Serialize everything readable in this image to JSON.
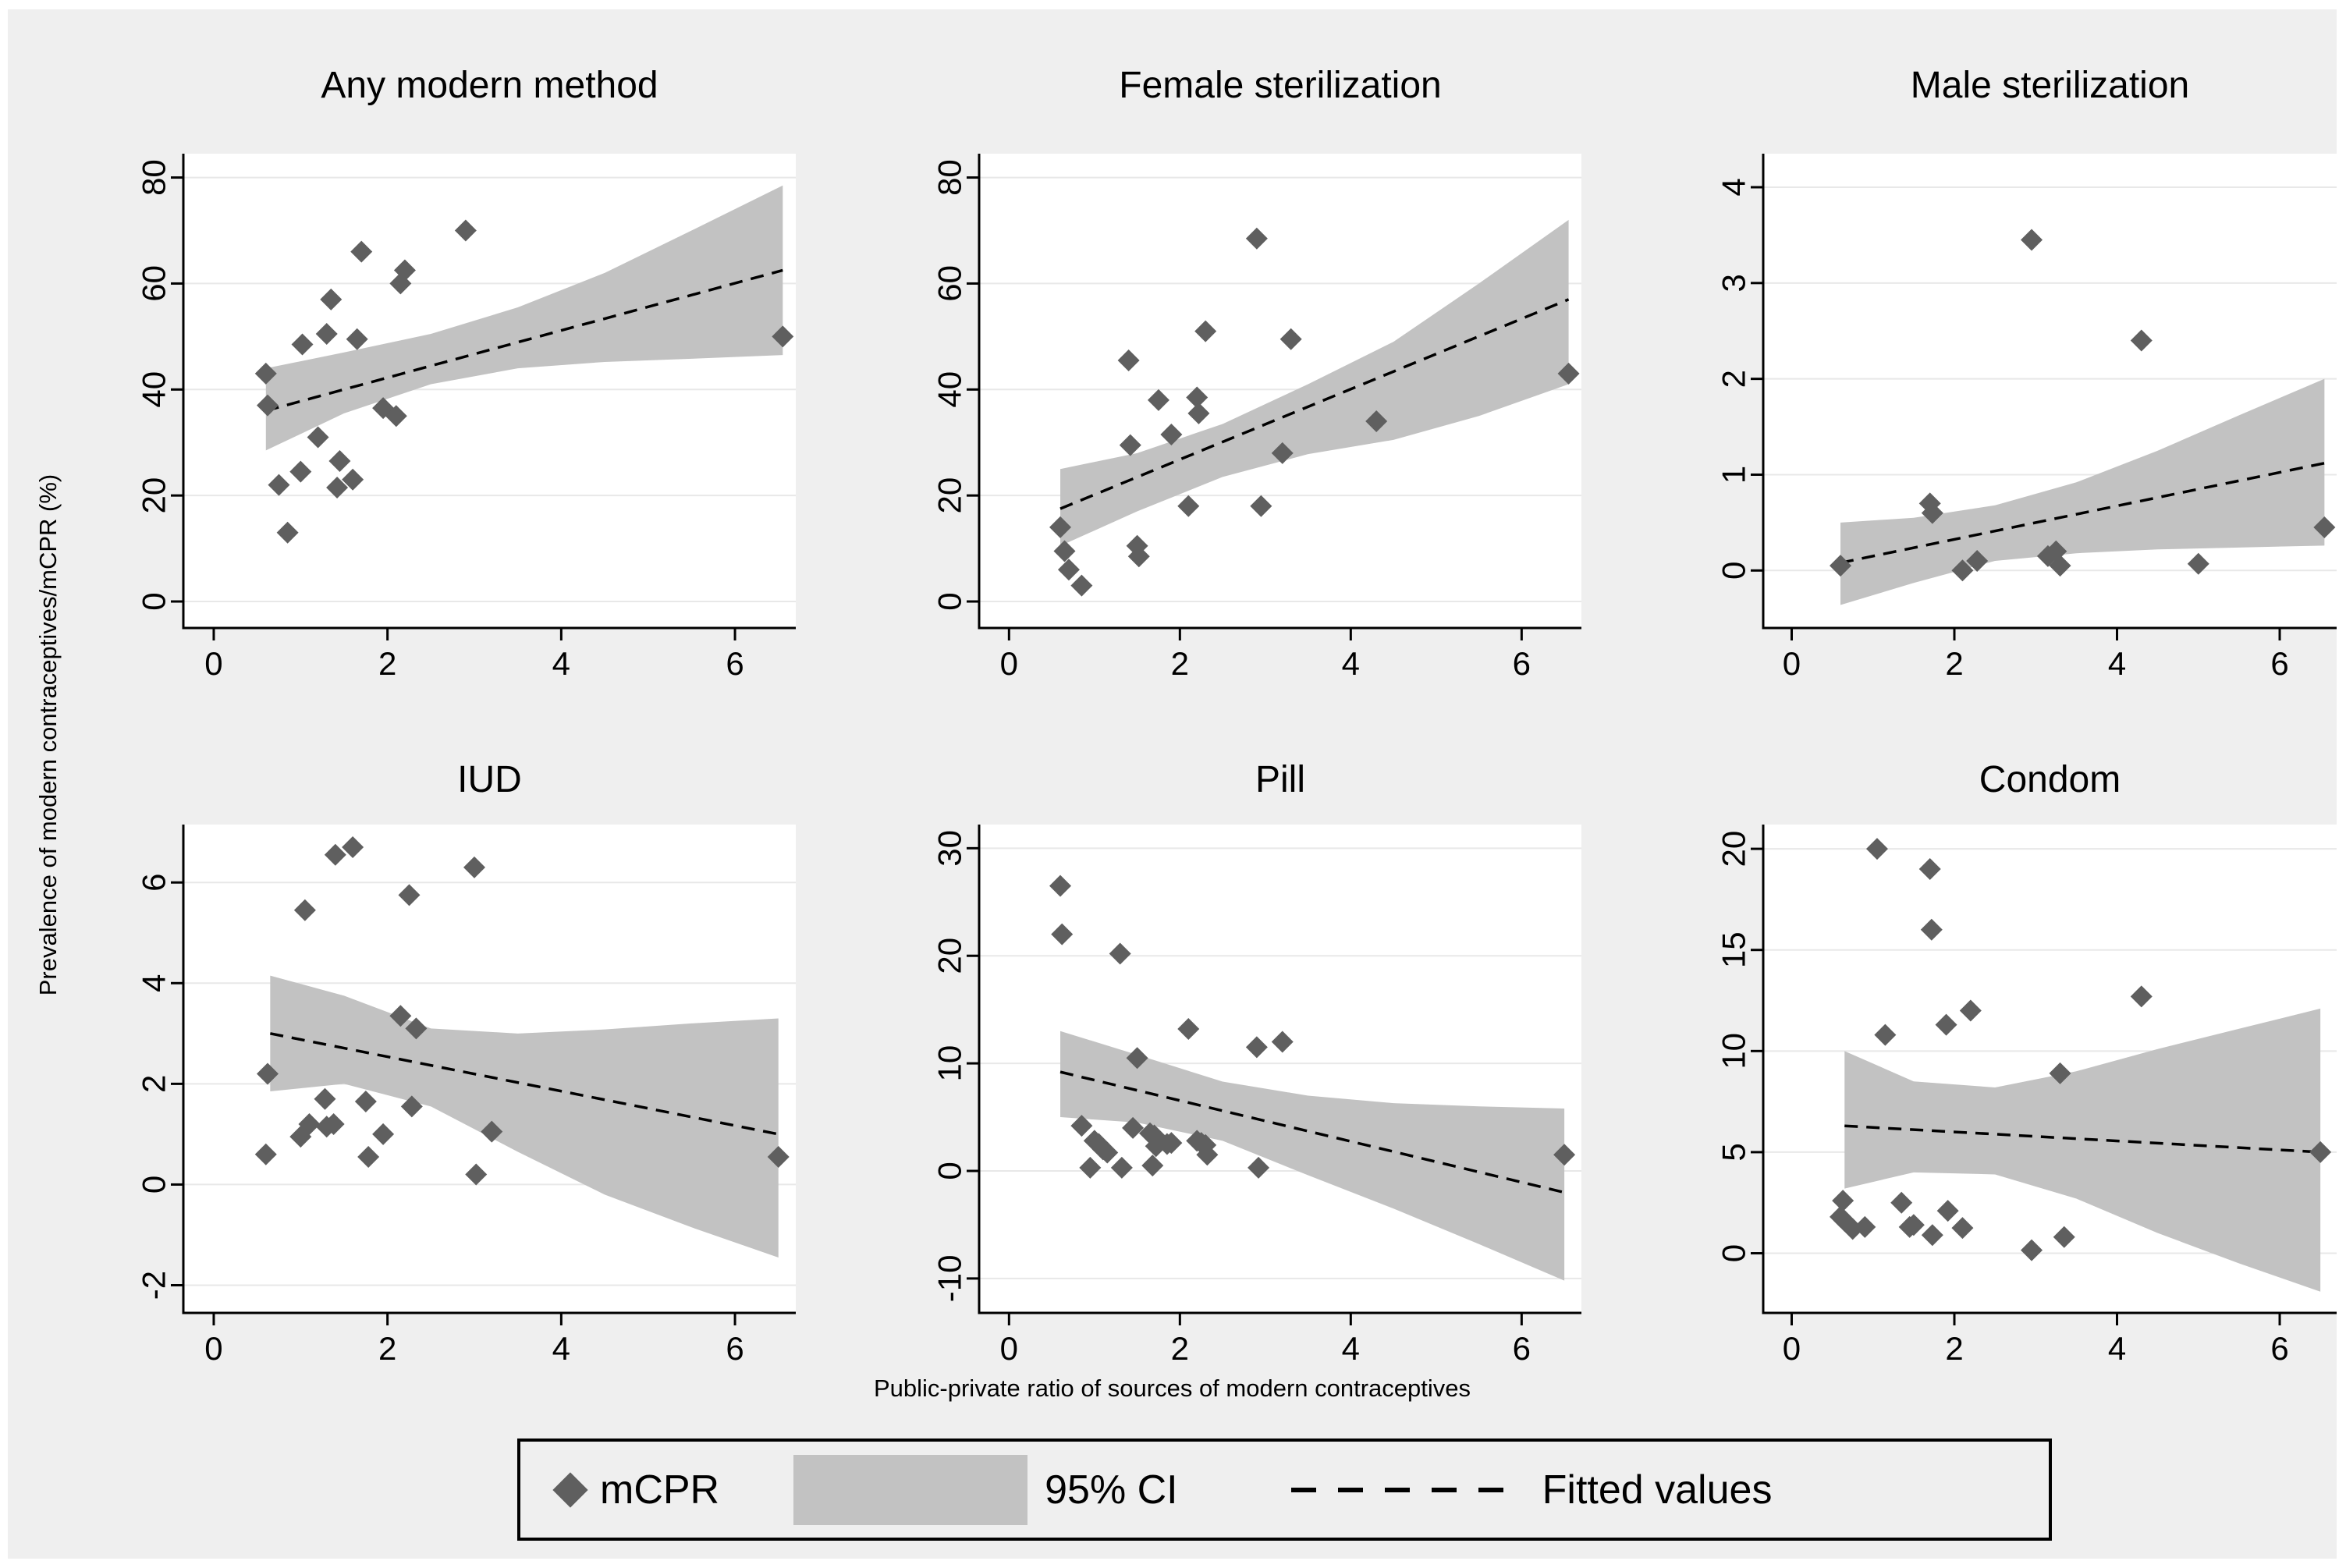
{
  "figure": {
    "ylabel": "Prevalence of modern contraceptives/mCPR (%)",
    "xlabel": "Public-private ratio of sources of modern contraceptives",
    "legend": {
      "mcpr_label": "mCPR",
      "ci_label": "95% CI",
      "fitted_label": "Fitted values"
    },
    "colors": {
      "background": "#efefef",
      "plot_bg": "#ffffff",
      "marker": "#5f5f5f",
      "ci_band": "#c2c2c2",
      "fitted_line": "#000000",
      "grid": "#e8e8e8",
      "axis": "#000000"
    }
  },
  "chart_data": [
    {
      "type": "scatter",
      "title": "Any modern method",
      "xlim": [
        -0.35,
        6.7
      ],
      "ylim": [
        -5,
        84.5
      ],
      "xticks": [
        0,
        2,
        4,
        6
      ],
      "yticks": [
        0,
        20,
        40,
        60,
        80
      ],
      "grid": "horizontal",
      "legend_position": "bottom",
      "points": [
        [
          0.6,
          43
        ],
        [
          0.62,
          37
        ],
        [
          0.75,
          22
        ],
        [
          0.85,
          13
        ],
        [
          1.0,
          24.5
        ],
        [
          1.02,
          48.5
        ],
        [
          1.2,
          31
        ],
        [
          1.3,
          50.5
        ],
        [
          1.35,
          57
        ],
        [
          1.42,
          21.5
        ],
        [
          1.45,
          26.5
        ],
        [
          1.6,
          23
        ],
        [
          1.65,
          49.5
        ],
        [
          1.7,
          66
        ],
        [
          1.95,
          36.5
        ],
        [
          2.1,
          35
        ],
        [
          2.15,
          60
        ],
        [
          2.2,
          62.5
        ],
        [
          2.9,
          70
        ],
        [
          6.55,
          50
        ]
      ],
      "fit": {
        "x": [
          0.6,
          6.55
        ],
        "y": [
          36,
          62.5
        ]
      },
      "ci": {
        "x": [
          0.6,
          1.5,
          2.5,
          3.5,
          4.5,
          5.5,
          6.55
        ],
        "upper": [
          44,
          47,
          50.5,
          55.5,
          62,
          70,
          78.5
        ],
        "lower": [
          28.5,
          35.5,
          41,
          44,
          45.2,
          45.8,
          46.5
        ]
      }
    },
    {
      "type": "scatter",
      "title": "Female sterilization",
      "xlim": [
        -0.35,
        6.7
      ],
      "ylim": [
        -5,
        84.5
      ],
      "xticks": [
        0,
        2,
        4,
        6
      ],
      "yticks": [
        0,
        20,
        40,
        60,
        80
      ],
      "grid": "horizontal",
      "points": [
        [
          0.6,
          14
        ],
        [
          0.65,
          9.5
        ],
        [
          0.7,
          6
        ],
        [
          0.85,
          3
        ],
        [
          1.4,
          45.5
        ],
        [
          1.42,
          29.5
        ],
        [
          1.5,
          10.5
        ],
        [
          1.52,
          8.5
        ],
        [
          1.75,
          38
        ],
        [
          1.9,
          31.5
        ],
        [
          2.1,
          18
        ],
        [
          2.2,
          38.5
        ],
        [
          2.22,
          35.5
        ],
        [
          2.3,
          51
        ],
        [
          2.9,
          68.5
        ],
        [
          2.95,
          18
        ],
        [
          3.2,
          28
        ],
        [
          3.3,
          49.5
        ],
        [
          4.3,
          34
        ],
        [
          6.55,
          43
        ]
      ],
      "fit": {
        "x": [
          0.6,
          6.55
        ],
        "y": [
          17.5,
          57
        ]
      },
      "ci": {
        "x": [
          0.6,
          1.5,
          2.5,
          3.5,
          4.5,
          5.5,
          6.55
        ],
        "upper": [
          25,
          28,
          33.5,
          41,
          49,
          60,
          72
        ],
        "lower": [
          10.5,
          17,
          23.5,
          27.8,
          30.5,
          35,
          41
        ]
      }
    },
    {
      "type": "scatter",
      "title": "Male sterilization",
      "xlim": [
        -0.35,
        6.7
      ],
      "ylim": [
        -0.6,
        4.35
      ],
      "xticks": [
        0,
        2,
        4,
        6
      ],
      "yticks": [
        0,
        1,
        2,
        3,
        4
      ],
      "grid": "horizontal",
      "points": [
        [
          0.6,
          0.05
        ],
        [
          1.7,
          0.7
        ],
        [
          1.73,
          0.6
        ],
        [
          2.1,
          0.0
        ],
        [
          2.28,
          0.1
        ],
        [
          2.95,
          3.45
        ],
        [
          3.15,
          0.15
        ],
        [
          3.25,
          0.2
        ],
        [
          3.3,
          0.05
        ],
        [
          4.3,
          2.4
        ],
        [
          5.0,
          0.07
        ],
        [
          6.55,
          0.45
        ]
      ],
      "fit": {
        "x": [
          0.6,
          6.55
        ],
        "y": [
          0.08,
          1.12
        ]
      },
      "ci": {
        "x": [
          0.6,
          1.5,
          2.5,
          3.5,
          4.5,
          5.5,
          6.55
        ],
        "upper": [
          0.5,
          0.55,
          0.68,
          0.92,
          1.25,
          1.62,
          2.0
        ],
        "lower": [
          -0.36,
          -0.13,
          0.1,
          0.18,
          0.22,
          0.24,
          0.26
        ]
      }
    },
    {
      "type": "scatter",
      "title": "IUD",
      "xlim": [
        -0.35,
        6.7
      ],
      "ylim": [
        -2.55,
        7.15
      ],
      "xticks": [
        0,
        2,
        4,
        6
      ],
      "yticks": [
        -2,
        0,
        2,
        4,
        6
      ],
      "grid": "horizontal",
      "points": [
        [
          0.6,
          0.6
        ],
        [
          0.62,
          2.2
        ],
        [
          1.0,
          0.95
        ],
        [
          1.05,
          5.45
        ],
        [
          1.1,
          1.2
        ],
        [
          1.28,
          1.7
        ],
        [
          1.3,
          1.15
        ],
        [
          1.38,
          1.2
        ],
        [
          1.4,
          6.55
        ],
        [
          1.6,
          6.7
        ],
        [
          1.75,
          1.65
        ],
        [
          1.78,
          0.55
        ],
        [
          1.95,
          1.0
        ],
        [
          2.15,
          3.35
        ],
        [
          2.25,
          5.75
        ],
        [
          2.33,
          3.1
        ],
        [
          2.28,
          1.55
        ],
        [
          3.0,
          6.3
        ],
        [
          3.02,
          0.2
        ],
        [
          3.2,
          1.05
        ],
        [
          6.5,
          0.55
        ]
      ],
      "fit": {
        "x": [
          0.65,
          6.5
        ],
        "y": [
          3.0,
          1.0
        ]
      },
      "ci": {
        "x": [
          0.65,
          1.5,
          2.5,
          3.5,
          4.5,
          5.5,
          6.5
        ],
        "upper": [
          4.15,
          3.75,
          3.1,
          3.0,
          3.08,
          3.2,
          3.3
        ],
        "lower": [
          1.85,
          2.0,
          1.55,
          0.65,
          -0.2,
          -0.85,
          -1.45
        ]
      }
    },
    {
      "type": "scatter",
      "title": "Pill",
      "xlim": [
        -0.35,
        6.7
      ],
      "ylim": [
        -13.2,
        32.2
      ],
      "xticks": [
        0,
        2,
        4,
        6
      ],
      "yticks": [
        -10,
        0,
        10,
        20,
        30
      ],
      "grid": "horizontal",
      "points": [
        [
          0.6,
          26.5
        ],
        [
          0.62,
          22
        ],
        [
          0.85,
          4.2
        ],
        [
          0.95,
          0.3
        ],
        [
          1.0,
          2.8
        ],
        [
          1.05,
          2.5
        ],
        [
          1.1,
          2.0
        ],
        [
          1.15,
          1.7
        ],
        [
          1.3,
          20.2
        ],
        [
          1.32,
          0.3
        ],
        [
          1.45,
          4.0
        ],
        [
          1.5,
          10.5
        ],
        [
          1.65,
          3.5
        ],
        [
          1.68,
          0.5
        ],
        [
          1.7,
          3.3
        ],
        [
          1.72,
          2.3
        ],
        [
          1.85,
          2.5
        ],
        [
          1.9,
          2.6
        ],
        [
          2.1,
          13.2
        ],
        [
          2.2,
          2.8
        ],
        [
          2.25,
          2.6
        ],
        [
          2.3,
          2.4
        ],
        [
          2.32,
          1.5
        ],
        [
          2.9,
          11.5
        ],
        [
          2.92,
          0.3
        ],
        [
          3.2,
          12
        ],
        [
          6.5,
          1.5
        ]
      ],
      "fit": {
        "x": [
          0.6,
          6.5
        ],
        "y": [
          9.2,
          -2.0
        ]
      },
      "ci": {
        "x": [
          0.6,
          1.5,
          2.5,
          3.5,
          4.5,
          5.5,
          6.5
        ],
        "upper": [
          13,
          10.8,
          8.3,
          7.0,
          6.3,
          6.0,
          5.8
        ],
        "lower": [
          5.0,
          4.5,
          2.8,
          -0.4,
          -3.5,
          -6.8,
          -10.2
        ]
      }
    },
    {
      "type": "scatter",
      "title": "Condom",
      "xlim": [
        -0.35,
        6.7
      ],
      "ylim": [
        -2.95,
        21.2
      ],
      "xticks": [
        0,
        2,
        4,
        6
      ],
      "yticks": [
        0,
        5,
        10,
        15,
        20
      ],
      "grid": "horizontal",
      "points": [
        [
          0.6,
          1.8
        ],
        [
          0.63,
          2.6
        ],
        [
          0.65,
          1.6
        ],
        [
          0.75,
          1.2
        ],
        [
          0.9,
          1.3
        ],
        [
          1.05,
          20
        ],
        [
          1.15,
          10.8
        ],
        [
          1.35,
          2.5
        ],
        [
          1.45,
          1.3
        ],
        [
          1.5,
          1.4
        ],
        [
          1.7,
          19
        ],
        [
          1.72,
          16
        ],
        [
          1.73,
          0.9
        ],
        [
          1.9,
          11.3
        ],
        [
          1.92,
          2.1
        ],
        [
          2.1,
          1.25
        ],
        [
          2.2,
          12
        ],
        [
          2.95,
          0.15
        ],
        [
          3.3,
          8.9
        ],
        [
          3.35,
          0.8
        ],
        [
          4.3,
          12.7
        ],
        [
          6.5,
          5.0
        ]
      ],
      "fit": {
        "x": [
          0.65,
          6.5
        ],
        "y": [
          6.3,
          5.0
        ]
      },
      "ci": {
        "x": [
          0.65,
          1.5,
          2.5,
          3.5,
          4.5,
          5.5,
          6.5
        ],
        "upper": [
          10,
          8.5,
          8.2,
          9.0,
          10.1,
          11.1,
          12.1
        ],
        "lower": [
          3.2,
          4.0,
          3.9,
          2.7,
          1.0,
          -0.5,
          -1.9
        ]
      }
    }
  ]
}
